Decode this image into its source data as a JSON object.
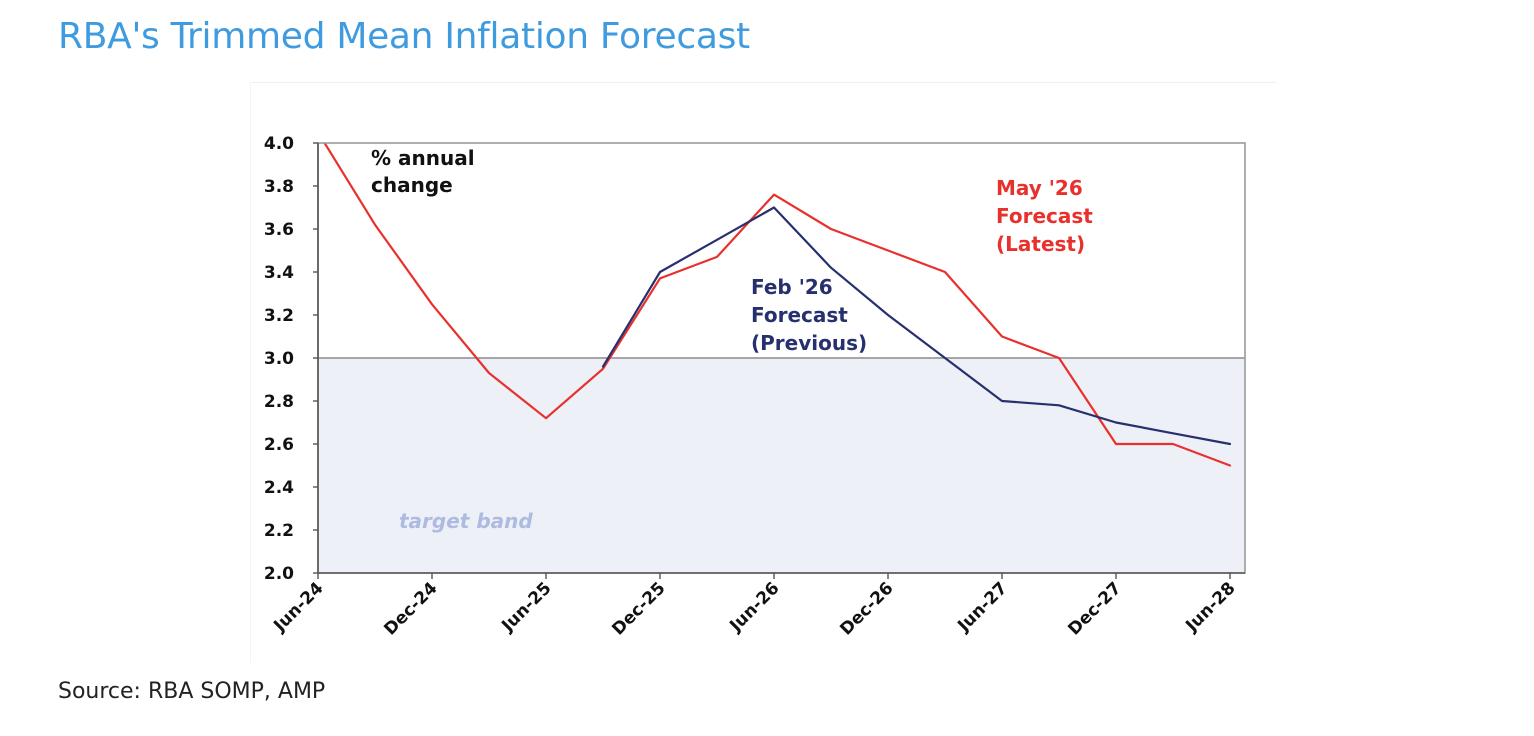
{
  "page": {
    "title": "RBA's Trimmed Mean Inflation Forecast",
    "source": "Source: RBA SOMP, AMP"
  },
  "chart_data": {
    "type": "line",
    "x_tick_labels": [
      "Jun-24",
      "Dec-24",
      "Jun-25",
      "Dec-25",
      "Jun-26",
      "Dec-26",
      "Jun-27",
      "Dec-27",
      "Jun-28"
    ],
    "ylim": [
      2.0,
      4.0
    ],
    "y_ticks": [
      "2.0",
      "2.2",
      "2.4",
      "2.6",
      "2.8",
      "3.0",
      "3.2",
      "3.4",
      "3.6",
      "3.8",
      "4.0"
    ],
    "grid": false,
    "target_band": {
      "range": [
        2.0,
        3.0
      ],
      "label": "target band",
      "color": "#eef0f8"
    },
    "annotations": {
      "units_line1": "% annual",
      "units_line2": "change",
      "may_line1": "May '26",
      "may_line2": "Forecast",
      "may_line3": "(Latest)",
      "feb_line1": "Feb '26",
      "feb_line2": "Forecast",
      "feb_line3": "(Previous)"
    },
    "series": [
      {
        "name": "May '26 Forecast (Latest)",
        "color": "#e8312d",
        "points": [
          [
            "Jun-24",
            4.05
          ],
          [
            "Sep-24",
            3.62
          ],
          [
            "Dec-24",
            3.25
          ],
          [
            "Mar-25",
            2.93
          ],
          [
            "Jun-25",
            2.72
          ],
          [
            "Sep-25",
            2.95
          ],
          [
            "Dec-25",
            3.37
          ],
          [
            "Mar-26",
            3.47
          ],
          [
            "Jun-26",
            3.76
          ],
          [
            "Sep-26",
            3.6
          ],
          [
            "Dec-26",
            3.5
          ],
          [
            "Mar-27",
            3.4
          ],
          [
            "Jun-27",
            3.1
          ],
          [
            "Sep-27",
            3.0
          ],
          [
            "Dec-27",
            2.6
          ],
          [
            "Mar-28",
            2.6
          ],
          [
            "Jun-28",
            2.5
          ]
        ]
      },
      {
        "name": "Feb '26 Forecast (Previous)",
        "color": "#27306e",
        "points": [
          [
            "Sep-25",
            2.96
          ],
          [
            "Dec-25",
            3.4
          ],
          [
            "Mar-26",
            3.55
          ],
          [
            "Jun-26",
            3.7
          ],
          [
            "Sep-26",
            3.42
          ],
          [
            "Dec-26",
            3.2
          ],
          [
            "Mar-27",
            3.0
          ],
          [
            "Jun-27",
            2.8
          ],
          [
            "Sep-27",
            2.78
          ],
          [
            "Dec-27",
            2.7
          ],
          [
            "Mar-28",
            2.65
          ],
          [
            "Jun-28",
            2.6
          ]
        ]
      }
    ]
  }
}
